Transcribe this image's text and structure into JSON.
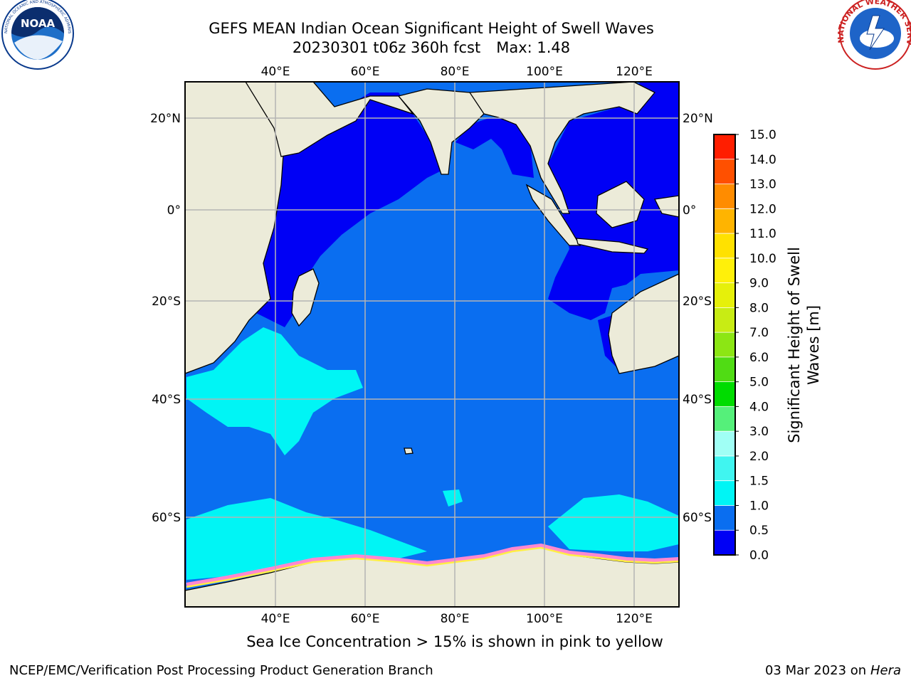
{
  "title": {
    "line1": "GEFS MEAN Indian Ocean Significant Height of Swell Waves",
    "line2_run": "20230301 t06z 360h fcst",
    "line2_max": "Max: 1.48"
  },
  "logos": {
    "noaa_text": "NOAA",
    "noaa_ring_text": "NATIONAL OCEANIC AND ATMOSPHERIC ADMINISTRATION · U.S. DEPARTMENT OF COMMERCE",
    "nws_ring_text": "NATIONAL WEATHER SERVICE"
  },
  "map": {
    "lon_labels": [
      "40°E",
      "60°E",
      "80°E",
      "100°E",
      "120°E"
    ],
    "lat_labels": [
      "20°N",
      "0°",
      "20°S",
      "40°S",
      "60°S"
    ],
    "colors": {
      "land": "#ecebd9",
      "ocean_low": "#0000f5",
      "ocean_mid": "#0a6ef0",
      "swell_high": "#00f5f5",
      "ice_pink": "#ff88d0",
      "ice_yellow": "#ffee44",
      "grid": "#b4b4b4"
    }
  },
  "colorbar": {
    "label_line1": "Significant Height of Swell",
    "label_line2": "Waves [m]",
    "ticks": [
      "0.0",
      "0.5",
      "1.0",
      "1.5",
      "2.0",
      "3.0",
      "4.0",
      "5.0",
      "6.0",
      "7.0",
      "8.0",
      "9.0",
      "10.0",
      "11.0",
      "12.0",
      "13.0",
      "14.0",
      "15.0"
    ],
    "bin_colors": [
      "#0000f5",
      "#0a6ef0",
      "#00f5f5",
      "#40f5f0",
      "#a0fff5",
      "#55f07a",
      "#00dc00",
      "#50dc14",
      "#8ce614",
      "#c8ec14",
      "#e6f00a",
      "#fff00a",
      "#ffe100",
      "#ffb400",
      "#ff8c00",
      "#ff5000",
      "#ff1e00"
    ]
  },
  "caption": "Sea Ice Concentration > 15% is shown in pink to yellow",
  "footer": {
    "left": "NCEP/EMC/Verification Post Processing Product Generation Branch",
    "right_date": "03 Mar 2023 on",
    "right_machine": "Hera"
  }
}
